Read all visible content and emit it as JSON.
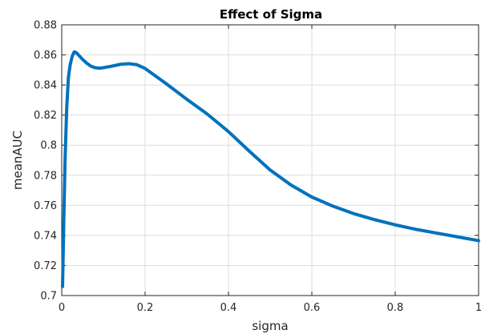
{
  "chart_data": {
    "type": "line",
    "title": "Effect of Sigma",
    "xlabel": "sigma",
    "ylabel": "meanAUC",
    "xlim": [
      0,
      1
    ],
    "ylim": [
      0.7,
      0.88
    ],
    "x_ticks": [
      "0",
      "0.2",
      "0.4",
      "0.6",
      "0.8",
      "1"
    ],
    "y_ticks": [
      "0.7",
      "0.72",
      "0.74",
      "0.76",
      "0.78",
      "0.8",
      "0.82",
      "0.84",
      "0.86",
      "0.88"
    ],
    "grid": true,
    "line_color": "#0072BD",
    "series": [
      {
        "x": [
          0.002,
          0.005,
          0.008,
          0.012,
          0.016,
          0.02,
          0.025,
          0.03,
          0.035,
          0.04,
          0.05,
          0.06,
          0.07,
          0.08,
          0.09,
          0.1,
          0.12,
          0.14,
          0.16,
          0.18,
          0.2,
          0.25,
          0.3,
          0.35,
          0.4,
          0.45,
          0.5,
          0.55,
          0.6,
          0.65,
          0.7,
          0.75,
          0.8,
          0.85,
          0.9,
          0.95,
          1.0
        ],
        "y": [
          0.706,
          0.75,
          0.79,
          0.825,
          0.845,
          0.853,
          0.859,
          0.862,
          0.8615,
          0.86,
          0.857,
          0.8545,
          0.8525,
          0.8515,
          0.8512,
          0.8515,
          0.8525,
          0.8537,
          0.8542,
          0.8535,
          0.851,
          0.841,
          0.8305,
          0.8205,
          0.809,
          0.796,
          0.7835,
          0.7735,
          0.7655,
          0.7595,
          0.7545,
          0.7505,
          0.747,
          0.744,
          0.7415,
          0.739,
          0.7365
        ]
      }
    ]
  }
}
